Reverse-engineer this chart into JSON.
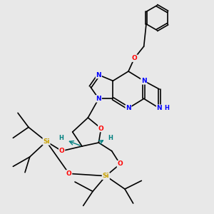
{
  "background_color": "#e8e8e8",
  "atom_colors": {
    "N": "#0000ff",
    "O": "#ff0000",
    "Si": "#c8a000",
    "H": "#008080",
    "C": "#000000"
  },
  "bond_color": "#000000",
  "bond_width": 1.2,
  "figsize": [
    3.0,
    3.0
  ],
  "dpi": 100
}
